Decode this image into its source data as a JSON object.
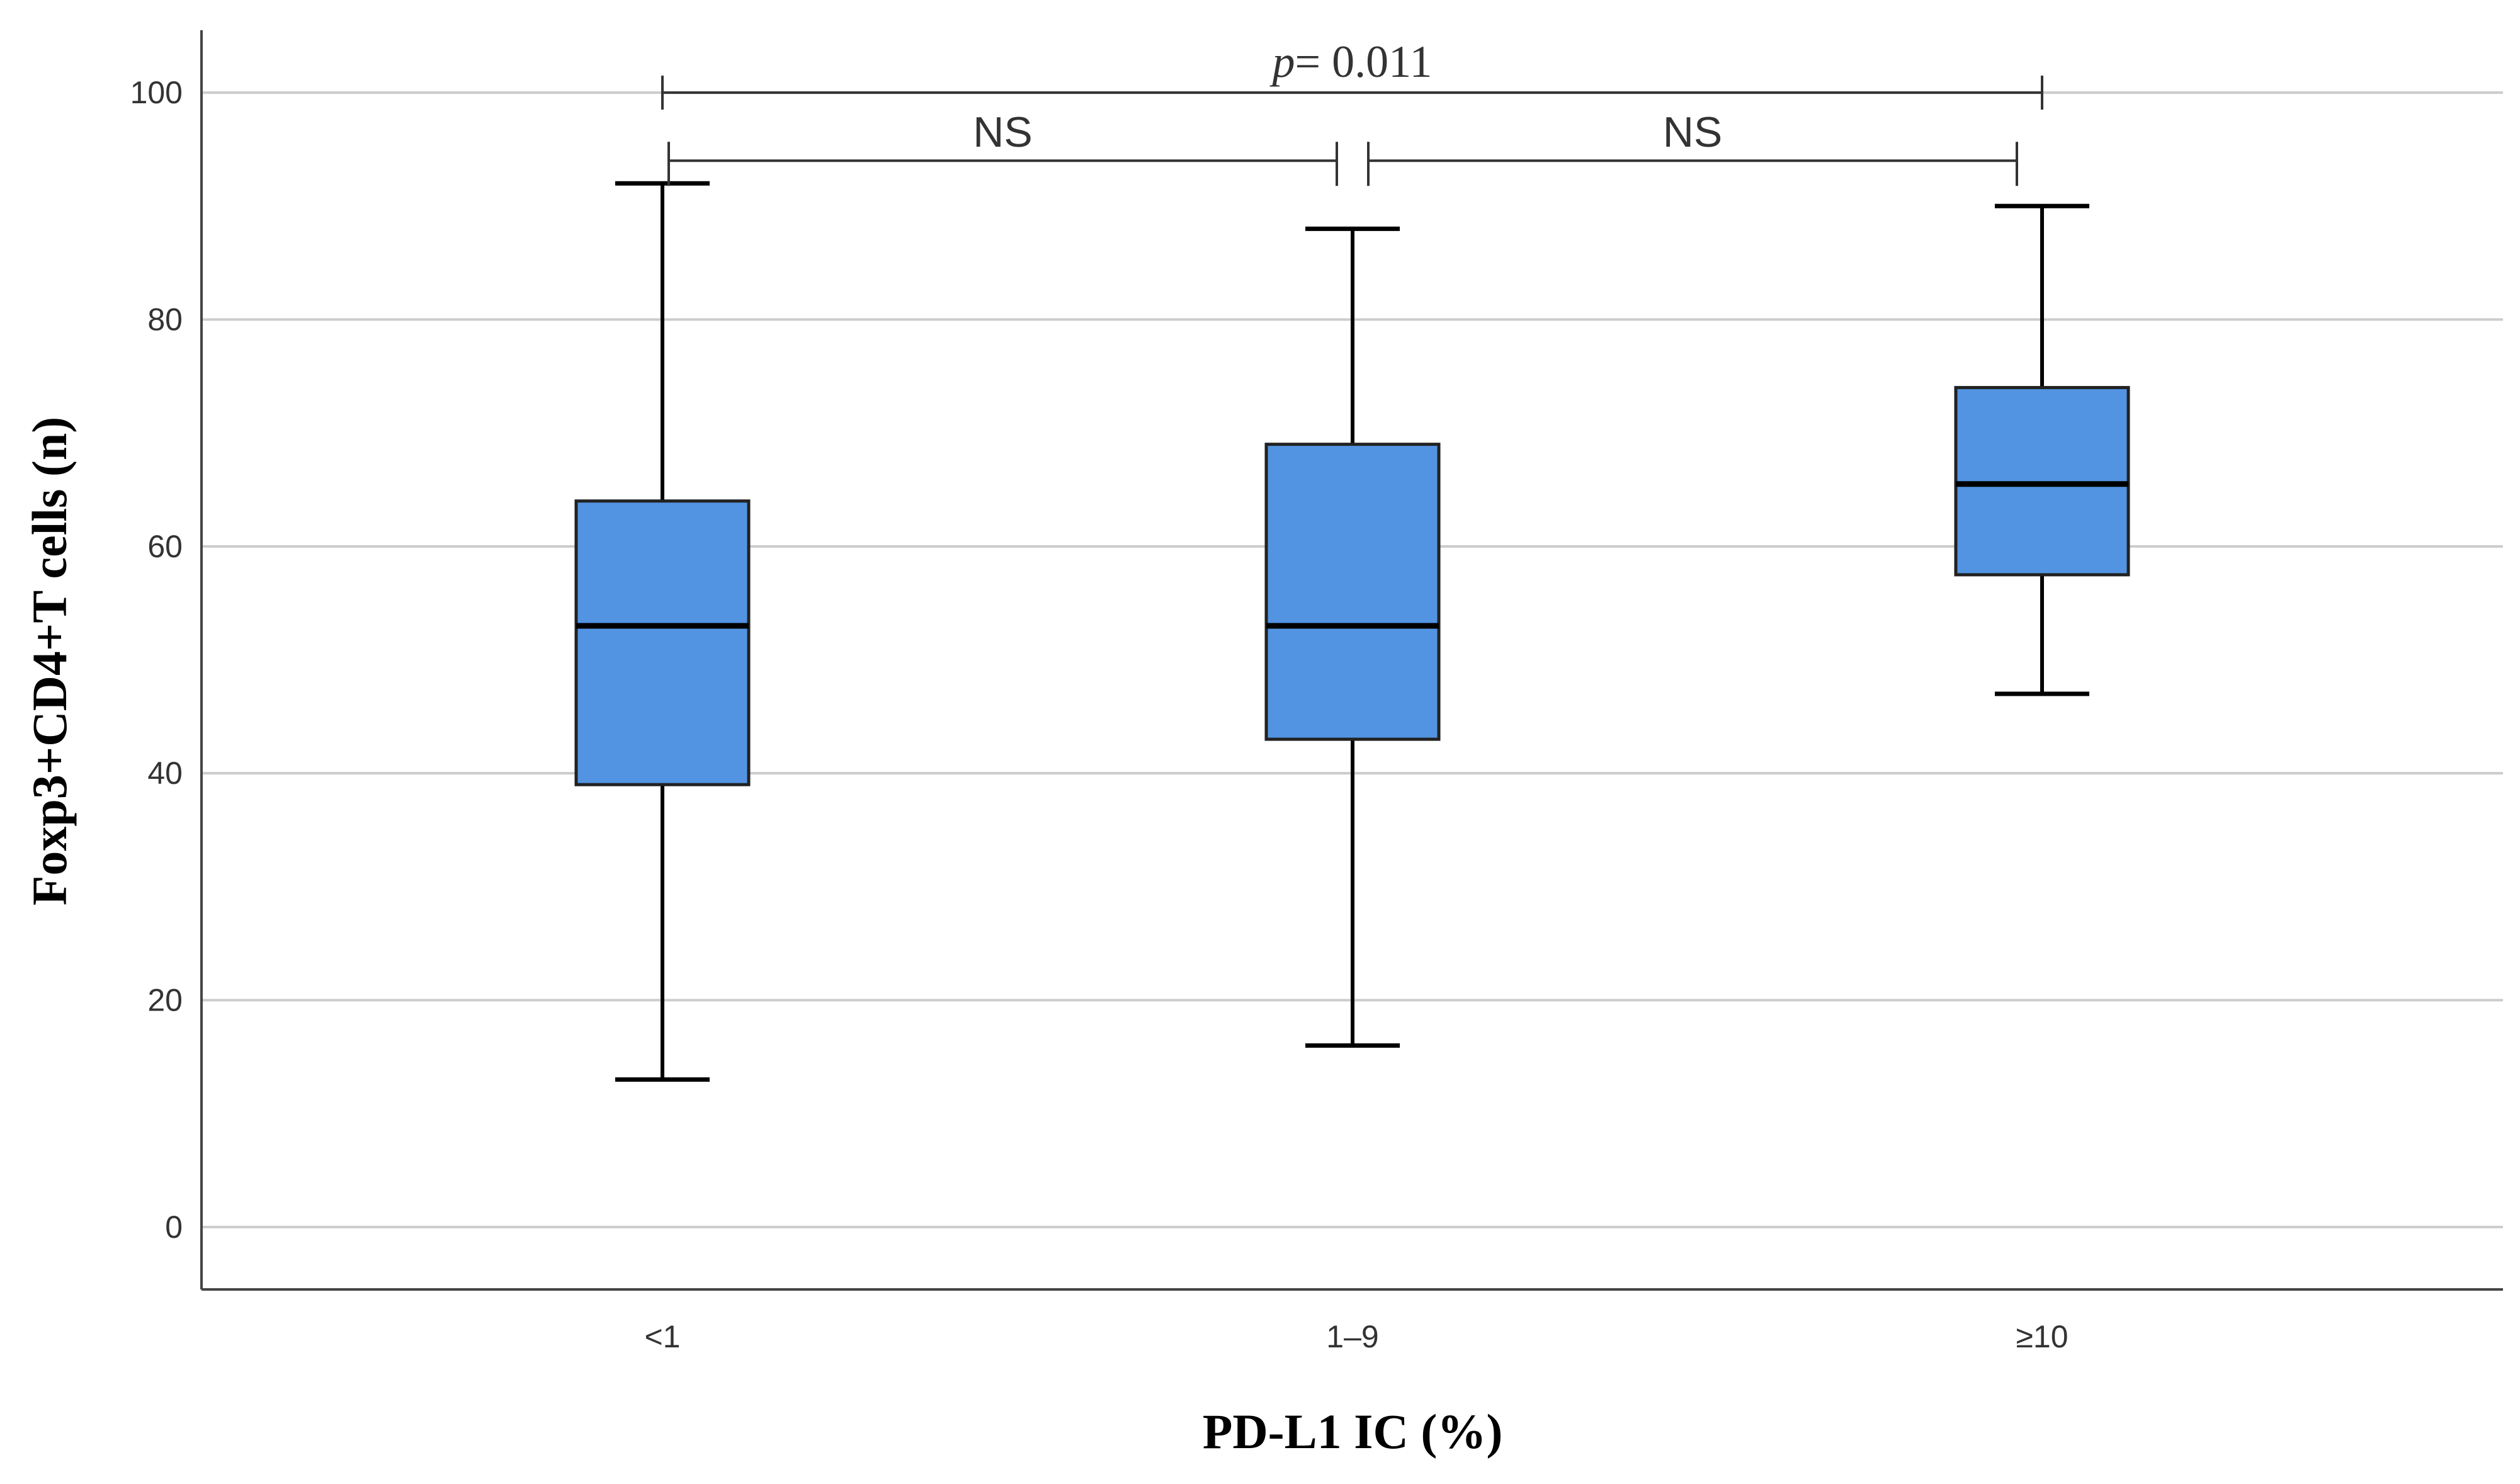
{
  "chart_data": {
    "type": "box",
    "xlabel": "PD-L1 IC (%)",
    "ylabel": "Foxp3+CD4+T cells (n)",
    "ylim": [
      -5.5,
      105.5
    ],
    "yticks": [
      0,
      20,
      40,
      60,
      80,
      100
    ],
    "ytick_labels": [
      "0",
      "20",
      "40",
      "60",
      "80",
      "100"
    ],
    "grid": "horizontal",
    "categories": [
      "<1",
      "1–9",
      "≥10"
    ],
    "boxes": [
      {
        "category": "<1",
        "whisker_low": 13,
        "q1": 39,
        "median": 53,
        "q3": 64,
        "whisker_high": 92
      },
      {
        "category": "1–9",
        "whisker_low": 16,
        "q1": 43,
        "median": 53,
        "q3": 69,
        "whisker_high": 88
      },
      {
        "category": "≥10",
        "whisker_low": 47,
        "q1": 57.5,
        "median": 65.5,
        "q3": 74,
        "whisker_high": 90
      }
    ],
    "comparisons": [
      {
        "from": "<1",
        "to": "≥10",
        "label_italic": "p",
        "label_rest": "= 0.011",
        "level": 100
      },
      {
        "from": "<1",
        "to": "1–9",
        "label": "NS",
        "level": 94
      },
      {
        "from": "1–9",
        "to": "≥10",
        "label": "NS",
        "level": 94
      }
    ],
    "colors": {
      "box_fill": "#5294E2",
      "box_edge": "#222222",
      "median": "#000000",
      "whisker": "#000000",
      "grid": "#cccccc",
      "axis": "#444444"
    }
  }
}
